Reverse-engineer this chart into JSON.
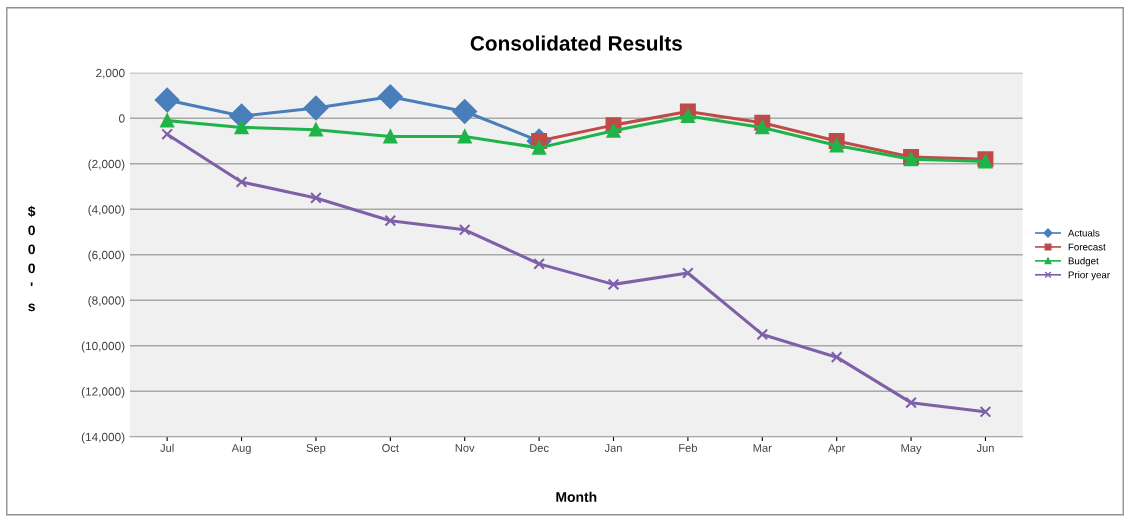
{
  "chart_data": {
    "type": "line",
    "title": "Consolidated Results",
    "xlabel": "Month",
    "ylabel": "$000's",
    "categories": [
      "Jul",
      "Aug",
      "Sep",
      "Oct",
      "Nov",
      "Dec",
      "Jan",
      "Feb",
      "Mar",
      "Apr",
      "May",
      "Jun"
    ],
    "series": [
      {
        "name": "Actuals",
        "color": "#4a7ebb",
        "marker": "diamond",
        "values": [
          800,
          100,
          450,
          950,
          300,
          -1000,
          null,
          null,
          null,
          null,
          null,
          null
        ]
      },
      {
        "name": "Forecast",
        "color": "#be4b48",
        "marker": "square",
        "values": [
          null,
          null,
          null,
          null,
          null,
          -1000,
          -300,
          300,
          -200,
          -1000,
          -1700,
          -1800
        ]
      },
      {
        "name": "Budget",
        "color": "#1fb44a",
        "marker": "triangle",
        "values": [
          -100,
          -400,
          -500,
          -800,
          -800,
          -1300,
          -550,
          100,
          -400,
          -1200,
          -1800,
          -1900
        ]
      },
      {
        "name": "Prior year",
        "color": "#7e60a8",
        "marker": "cross",
        "values": [
          -700,
          -2800,
          -3500,
          -4500,
          -4900,
          -6400,
          -7300,
          -6800,
          -9500,
          -10500,
          -12500,
          -12900
        ]
      }
    ],
    "ylim": [
      -14000,
      2000
    ],
    "yticks": [
      {
        "value": -14000,
        "label": "(14,000)"
      },
      {
        "value": -12000,
        "label": "(12,000)"
      },
      {
        "value": -10000,
        "label": "(10,000)"
      },
      {
        "value": -8000,
        "label": "(8,000)"
      },
      {
        "value": -6000,
        "label": "(6,000)"
      },
      {
        "value": -4000,
        "label": "(4,000)"
      },
      {
        "value": -2000,
        "label": "(2,000)"
      },
      0,
      {
        "value": 2000,
        "label": "2,000"
      }
    ],
    "grid": "y",
    "legend": "right",
    "line_style": "solid"
  }
}
